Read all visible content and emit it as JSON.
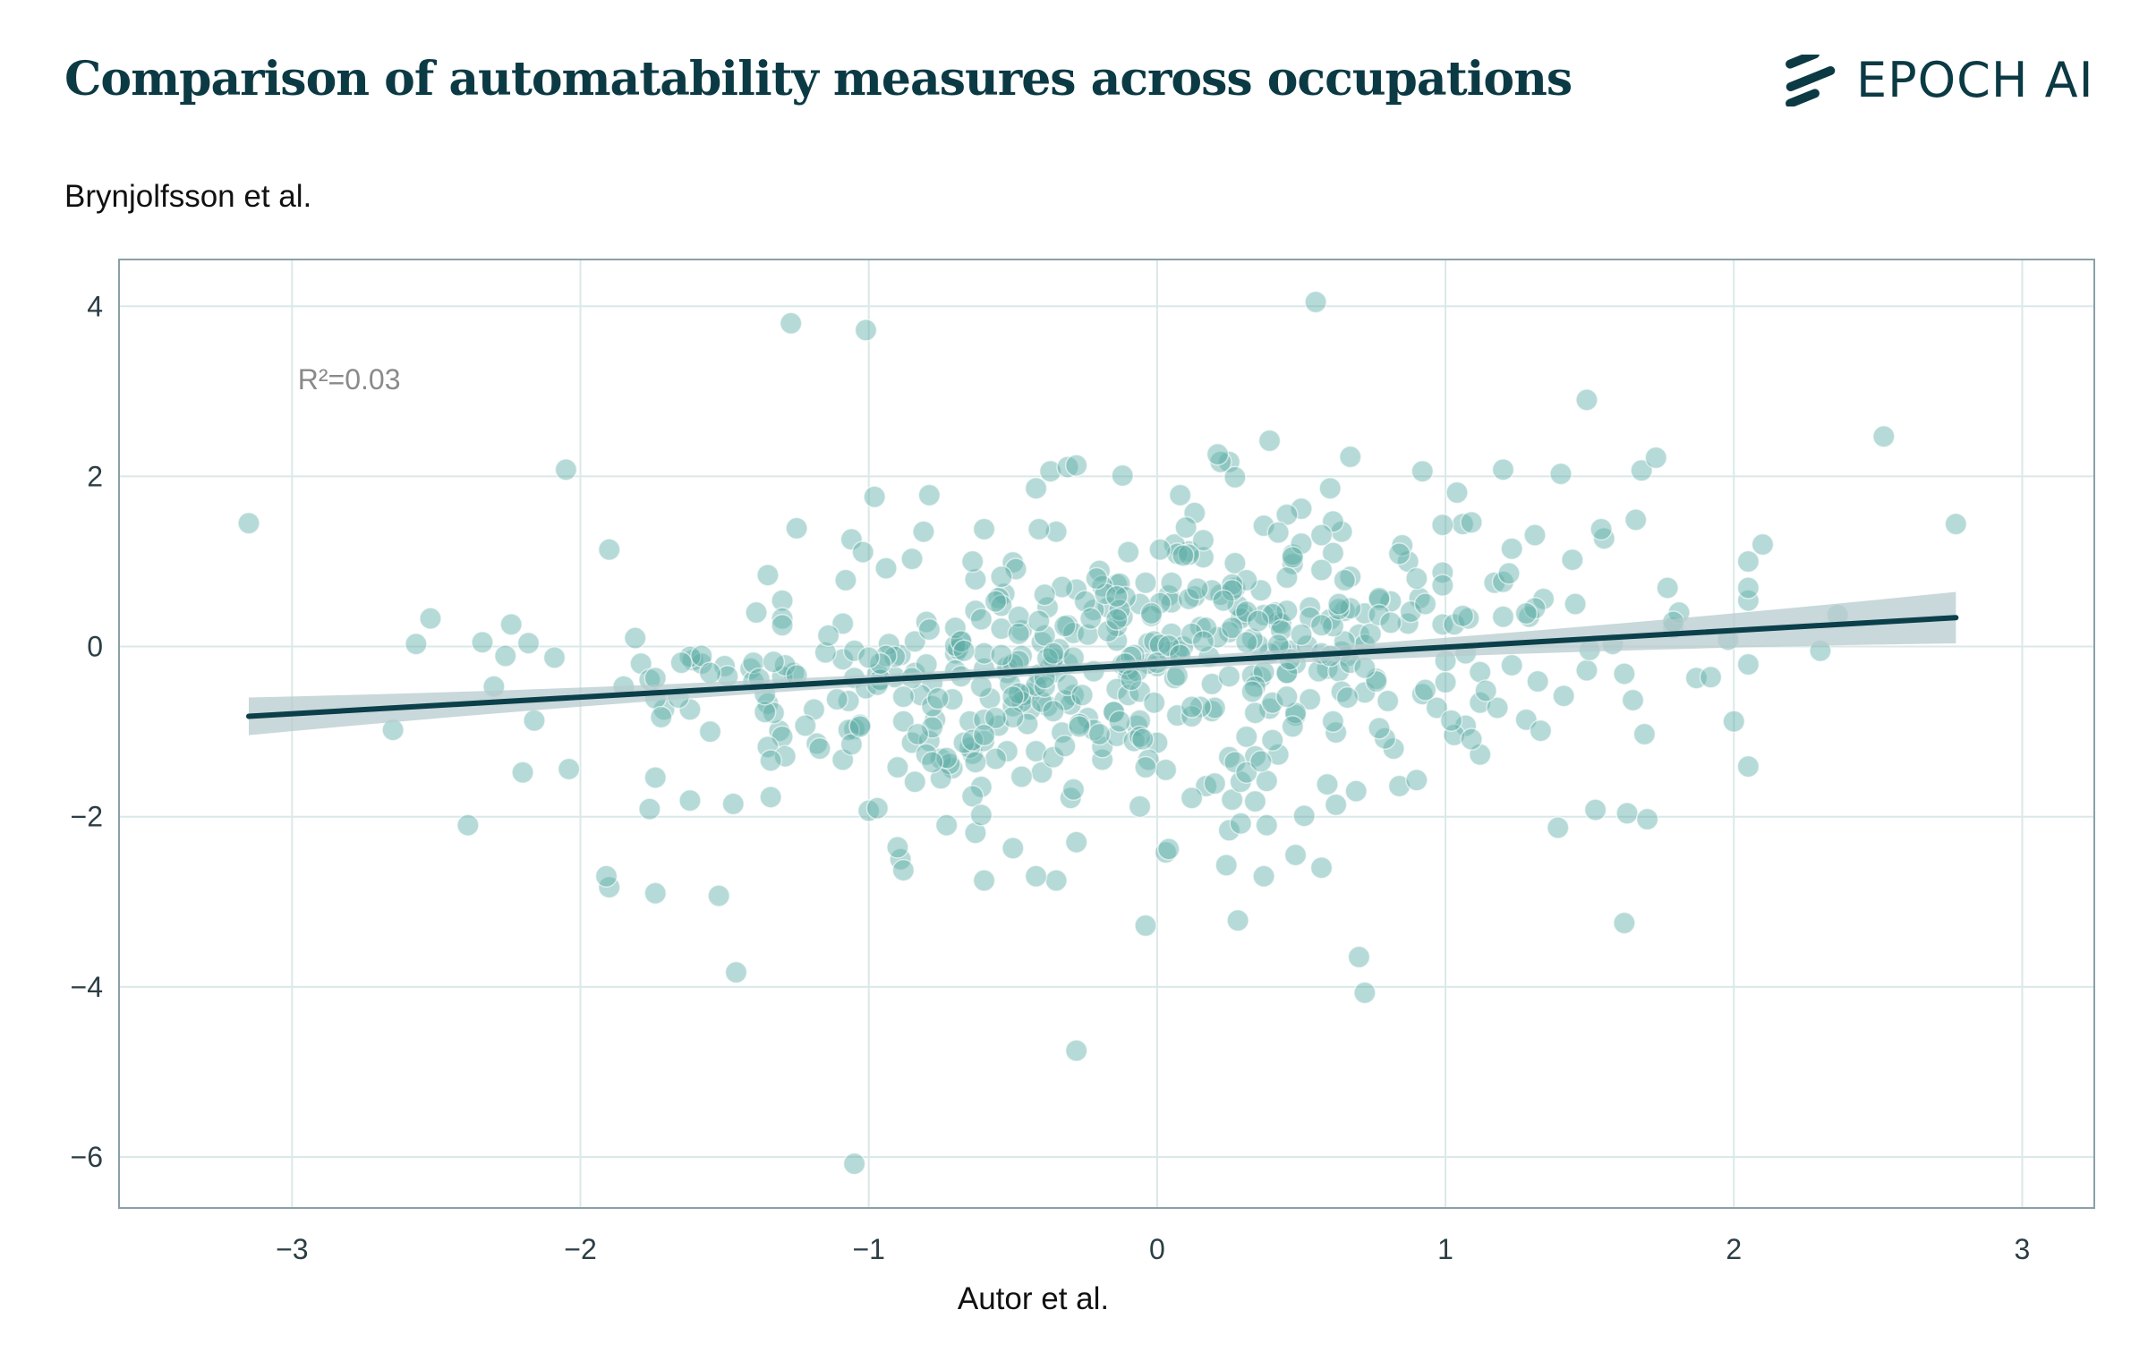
{
  "page": {
    "title": "Comparison of automatability measures across occupations",
    "subtitle": "Brynjolfsson et al.",
    "brand": "EPOCH AI",
    "brand_icon": "epoch-logo-stripes-icon"
  },
  "colors": {
    "text": "#0b3a44",
    "points": "#5eada6",
    "regression_line": "#0b3f4a",
    "confidence_band": "#b7cbcd",
    "grid": "#dbe8e8",
    "frame": "#8aa0a8"
  },
  "chart_data": {
    "type": "scatter",
    "title": "Comparison of automatability measures across occupations",
    "subtitle": "Brynjolfsson et al.",
    "xlabel": "Autor et al.",
    "ylabel": "",
    "xlim": [
      -3.6,
      3.25
    ],
    "ylim": [
      -6.6,
      4.55
    ],
    "xticks": [
      -3,
      -2,
      -1,
      0,
      1,
      2,
      3
    ],
    "xtick_labels": [
      "−3",
      "−2",
      "−1",
      "0",
      "1",
      "2",
      "3"
    ],
    "yticks": [
      4,
      2,
      0,
      -2,
      -4,
      -6
    ],
    "ytick_labels": [
      "4",
      "2",
      "0",
      "−2",
      "−4",
      "−6"
    ],
    "grid": true,
    "annotation": "R²=0.03",
    "regression": {
      "x": [
        -3.15,
        2.77
      ],
      "y": [
        -0.82,
        0.34
      ],
      "ci_halfwidth_ends": 0.26,
      "ci_halfwidth_center": 0.06
    },
    "outliers": [
      [
        -3.15,
        1.45
      ],
      [
        -1.27,
        3.8
      ],
      [
        -1.01,
        3.72
      ],
      [
        0.55,
        4.05
      ],
      [
        1.49,
        2.9
      ],
      [
        2.52,
        2.47
      ],
      [
        2.77,
        1.44
      ],
      [
        -2.05,
        2.08
      ],
      [
        -1.05,
        -6.08
      ],
      [
        -0.28,
        -4.75
      ],
      [
        -1.46,
        -3.83
      ],
      [
        0.72,
        -4.07
      ],
      [
        0.7,
        -3.65
      ],
      [
        1.62,
        -3.25
      ],
      [
        -0.04,
        -3.28
      ],
      [
        0.28,
        -3.22
      ],
      [
        -2.39,
        -2.1
      ],
      [
        -1.52,
        -2.93
      ],
      [
        -1.9,
        -2.83
      ],
      [
        -1.74,
        -2.9
      ],
      [
        2.3,
        -0.05
      ],
      [
        2.36,
        0.37
      ],
      [
        2.0,
        -0.88
      ],
      [
        2.1,
        1.2
      ],
      [
        -2.65,
        -0.98
      ],
      [
        -2.57,
        0.03
      ],
      [
        -2.52,
        0.33
      ],
      [
        -2.34,
        0.05
      ],
      [
        -0.6,
        -2.75
      ],
      [
        -0.89,
        -2.5
      ],
      [
        0.57,
        -2.6
      ],
      [
        1.39,
        -2.13
      ],
      [
        1.52,
        -1.92
      ],
      [
        -0.35,
        -2.75
      ]
    ],
    "cluster": {
      "count": 560,
      "seed": 7,
      "x_mean": -0.1,
      "x_sd": 0.9,
      "x_min": -2.3,
      "x_max": 2.05,
      "slope": 0.2,
      "intercept": -0.2,
      "y_sd": 0.92,
      "y_min": -2.7,
      "y_max": 2.5
    }
  }
}
